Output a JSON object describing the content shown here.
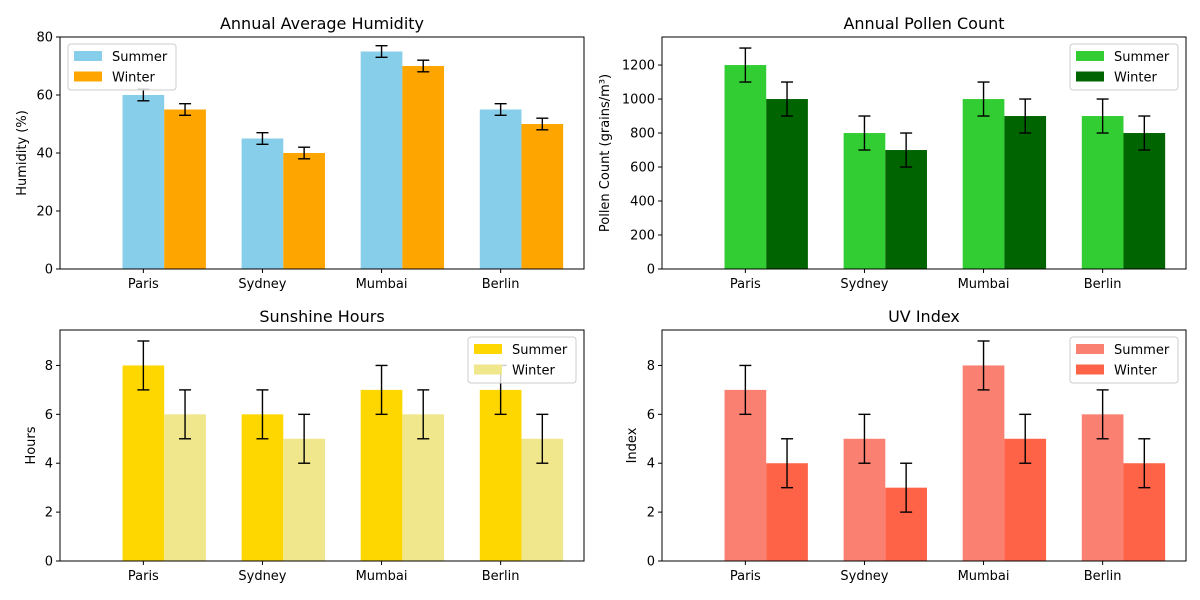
{
  "chart_data": [
    {
      "type": "bar",
      "title": "Annual Average Humidity",
      "xlabel": "",
      "ylabel": "Humidity (%)",
      "categories": [
        "Paris",
        "Sydney",
        "Mumbai",
        "Berlin"
      ],
      "ylim": [
        0,
        80
      ],
      "yticks": [
        0,
        20,
        40,
        60,
        80
      ],
      "legend": "top-left",
      "series": [
        {
          "name": "Summer",
          "color": "#87CEEB",
          "values": [
            60,
            45,
            75,
            55
          ],
          "errors": [
            2,
            2,
            2,
            2
          ]
        },
        {
          "name": "Winter",
          "color": "#FFA500",
          "values": [
            55,
            40,
            70,
            50
          ],
          "errors": [
            2,
            2,
            2,
            2
          ]
        }
      ]
    },
    {
      "type": "bar",
      "title": "Annual Pollen Count",
      "xlabel": "",
      "ylabel": "Pollen Count (grains/m³)",
      "categories": [
        "Paris",
        "Sydney",
        "Mumbai",
        "Berlin"
      ],
      "ylim": [
        0,
        1365
      ],
      "yticks": [
        0,
        200,
        400,
        600,
        800,
        1000,
        1200
      ],
      "legend": "top-right",
      "series": [
        {
          "name": "Summer",
          "color": "#32CD32",
          "values": [
            1200,
            800,
            1000,
            900
          ],
          "errors": [
            100,
            100,
            100,
            100
          ]
        },
        {
          "name": "Winter",
          "color": "#006400",
          "values": [
            1000,
            700,
            900,
            800
          ],
          "errors": [
            100,
            100,
            100,
            100
          ]
        }
      ]
    },
    {
      "type": "bar",
      "title": "Sunshine Hours",
      "xlabel": "",
      "ylabel": "Hours",
      "categories": [
        "Paris",
        "Sydney",
        "Mumbai",
        "Berlin"
      ],
      "ylim": [
        0,
        9.45
      ],
      "yticks": [
        0,
        2,
        4,
        6,
        8
      ],
      "legend": "top-right",
      "series": [
        {
          "name": "Summer",
          "color": "#FFD700",
          "values": [
            8,
            6,
            7,
            7
          ],
          "errors": [
            1,
            1,
            1,
            1
          ]
        },
        {
          "name": "Winter",
          "color": "#F0E68C",
          "values": [
            6,
            5,
            6,
            5
          ],
          "errors": [
            1,
            1,
            1,
            1
          ]
        }
      ]
    },
    {
      "type": "bar",
      "title": "UV Index",
      "xlabel": "",
      "ylabel": "Index",
      "categories": [
        "Paris",
        "Sydney",
        "Mumbai",
        "Berlin"
      ],
      "ylim": [
        0,
        9.45
      ],
      "yticks": [
        0,
        2,
        4,
        6,
        8
      ],
      "legend": "top-right",
      "series": [
        {
          "name": "Summer",
          "color": "#FA8072",
          "values": [
            7,
            5,
            8,
            6
          ],
          "errors": [
            1,
            1,
            1,
            1
          ]
        },
        {
          "name": "Winter",
          "color": "#FF6347",
          "values": [
            4,
            3,
            5,
            4
          ],
          "errors": [
            1,
            1,
            1,
            1
          ]
        }
      ]
    }
  ]
}
